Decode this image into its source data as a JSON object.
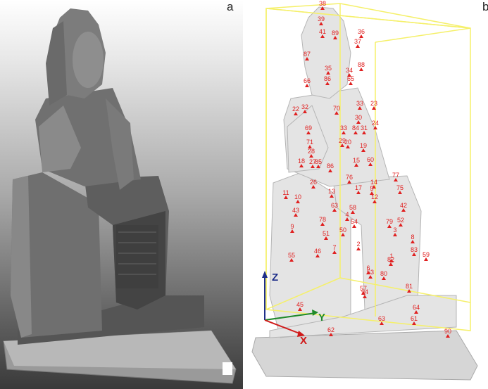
{
  "panels": [
    {
      "letter": "a",
      "description_name": "point-cloud-grayscale"
    },
    {
      "letter": "b",
      "description_name": "point-cloud-with-targets"
    }
  ],
  "axes": {
    "x_label": "X",
    "y_label": "Y",
    "z_label": "Z",
    "x_color": "#d01a1a",
    "y_color": "#1f8a2a",
    "z_color": "#1f2f8a"
  },
  "bbox_color": "#f5f06a",
  "marker_color": "#e02020",
  "markers": [
    "38",
    "39",
    "41",
    "89",
    "36",
    "37",
    "88",
    "87",
    "35",
    "86",
    "34",
    "65",
    "66",
    "70",
    "33",
    "23",
    "22",
    "32",
    "30",
    "31",
    "33",
    "29",
    "84",
    "24",
    "69",
    "71",
    "28",
    "20",
    "19",
    "18",
    "27",
    "85",
    "86",
    "26",
    "15",
    "60",
    "76",
    "17",
    "14",
    "77",
    "12",
    "13",
    "63",
    "75",
    "11",
    "10",
    "5",
    "58",
    "4",
    "42",
    "78",
    "54",
    "52",
    "43",
    "9",
    "3",
    "79",
    "51",
    "50",
    "8",
    "7",
    "2",
    "83",
    "55",
    "46",
    "1",
    "6",
    "82",
    "53",
    "80",
    "59",
    "57",
    "81",
    "45",
    "64",
    "94",
    "62",
    "61",
    "63",
    "90"
  ]
}
